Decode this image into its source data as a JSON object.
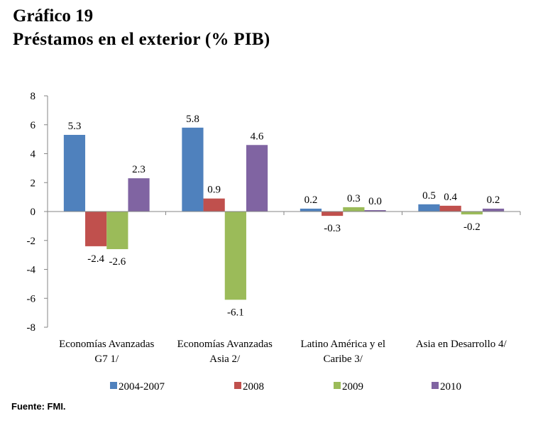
{
  "header": {
    "title_line1": "Gráfico 19",
    "title_line2": "Préstamos en el exterior  (% PIB)"
  },
  "source": "Fuente: FMI.",
  "chart_data": {
    "type": "bar",
    "title": "Préstamos en el exterior (% PIB)",
    "xlabel": "",
    "ylabel": "",
    "ylim": [
      -8,
      8
    ],
    "yticks": [
      8,
      6,
      4,
      2,
      0,
      -2,
      -4,
      -6,
      -8
    ],
    "grid": false,
    "legend_position": "bottom",
    "categories": [
      [
        "Economías Avanzadas",
        "G7 1/"
      ],
      [
        "Economías Avanzadas",
        "Asia 2/"
      ],
      [
        "Latino América y el",
        "Caribe 3/"
      ],
      [
        "Asia en Desarrollo 4/"
      ]
    ],
    "series": [
      {
        "name": "2004-2007",
        "color": "#4F81BD",
        "values": [
          5.3,
          5.8,
          0.2,
          0.5
        ],
        "labels": [
          "5.3",
          "5.8",
          "0.2",
          "0.5"
        ]
      },
      {
        "name": "2008",
        "color": "#C0504D",
        "values": [
          -2.4,
          0.9,
          -0.3,
          0.4
        ],
        "labels": [
          "-2.4",
          "0.9",
          "-0.3",
          "0.4"
        ]
      },
      {
        "name": "2009",
        "color": "#9BBB59",
        "values": [
          -2.6,
          -6.1,
          0.3,
          -0.2
        ],
        "labels": [
          "-2.6",
          "-6.1",
          "0.3",
          "-0.2"
        ]
      },
      {
        "name": "2010",
        "color": "#8064A2",
        "values": [
          2.3,
          4.6,
          0.0,
          0.2
        ],
        "labels": [
          "2.3",
          "4.6",
          "0.0",
          "0.2"
        ]
      }
    ]
  }
}
